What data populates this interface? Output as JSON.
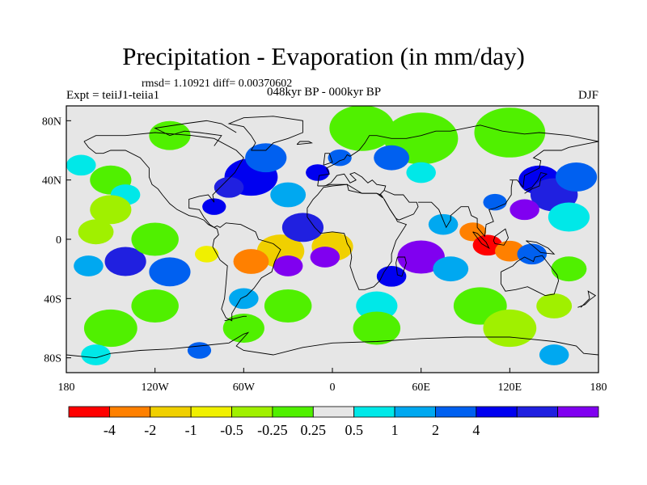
{
  "header": {
    "title": "Precipitation - Evaporation (in mm/day)",
    "stats": "rmsd= 1.10921 diff= 0.00370602",
    "experiment": "Expt = teiiJ1-teiia1",
    "period": "048kyr BP - 000kyr BP",
    "season": "DJF"
  },
  "map": {
    "lon_range": [
      -180,
      180
    ],
    "lat_range": [
      -90,
      90
    ],
    "background_color": "#e6e6e6",
    "x_ticks": [
      {
        "value": -180,
        "label": "180"
      },
      {
        "value": -120,
        "label": "120W"
      },
      {
        "value": -60,
        "label": "60W"
      },
      {
        "value": 0,
        "label": "0"
      },
      {
        "value": 60,
        "label": "60E"
      },
      {
        "value": 120,
        "label": "120E"
      },
      {
        "value": 180,
        "label": "180"
      }
    ],
    "y_ticks": [
      {
        "value": 80,
        "label": "80N"
      },
      {
        "value": 40,
        "label": "40N"
      },
      {
        "value": 0,
        "label": "0"
      },
      {
        "value": -40,
        "label": "40S"
      },
      {
        "value": -80,
        "label": "80S"
      }
    ]
  },
  "colorbar": {
    "colors": [
      "#ff0000",
      "#ff8000",
      "#f0d000",
      "#f0f000",
      "#a0f000",
      "#50f000",
      "#e6e6e6",
      "#00e8e8",
      "#00a8f0",
      "#0060f0",
      "#0000f0",
      "#2020e0",
      "#8000f0"
    ],
    "labels": [
      "-4",
      "-2",
      "-1",
      "-0.5",
      "-0.25",
      "0.25",
      "0.5",
      "1",
      "2",
      "4"
    ]
  },
  "fields": [
    {
      "lon": -170,
      "lat": 70,
      "r": 12,
      "v": 6
    },
    {
      "lon": -110,
      "lat": 70,
      "r": 14,
      "v": 5
    },
    {
      "lon": -60,
      "lat": 72,
      "r": 10,
      "v": 6
    },
    {
      "lon": 20,
      "lat": 75,
      "r": 22,
      "v": 5
    },
    {
      "lon": 60,
      "lat": 68,
      "r": 25,
      "v": 5
    },
    {
      "lon": 120,
      "lat": 72,
      "r": 24,
      "v": 5
    },
    {
      "lon": -150,
      "lat": 40,
      "r": 14,
      "v": 5
    },
    {
      "lon": -170,
      "lat": 50,
      "r": 10,
      "v": 7
    },
    {
      "lon": -140,
      "lat": 30,
      "r": 10,
      "v": 7
    },
    {
      "lon": -150,
      "lat": 20,
      "r": 14,
      "v": 4
    },
    {
      "lon": -55,
      "lat": 42,
      "r": 18,
      "v": 10
    },
    {
      "lon": -70,
      "lat": 35,
      "r": 10,
      "v": 11
    },
    {
      "lon": -45,
      "lat": 55,
      "r": 14,
      "v": 9
    },
    {
      "lon": -30,
      "lat": 30,
      "r": 12,
      "v": 8
    },
    {
      "lon": -80,
      "lat": 22,
      "r": 8,
      "v": 10
    },
    {
      "lon": -10,
      "lat": 45,
      "r": 8,
      "v": 10
    },
    {
      "lon": 5,
      "lat": 55,
      "r": 8,
      "v": 9
    },
    {
      "lon": 40,
      "lat": 55,
      "r": 12,
      "v": 9
    },
    {
      "lon": 60,
      "lat": 45,
      "r": 10,
      "v": 7
    },
    {
      "lon": 140,
      "lat": 40,
      "r": 14,
      "v": 10
    },
    {
      "lon": 150,
      "lat": 30,
      "r": 16,
      "v": 11
    },
    {
      "lon": 165,
      "lat": 42,
      "r": 14,
      "v": 9
    },
    {
      "lon": 130,
      "lat": 20,
      "r": 10,
      "v": 12
    },
    {
      "lon": 160,
      "lat": 15,
      "r": 14,
      "v": 7
    },
    {
      "lon": 110,
      "lat": 25,
      "r": 8,
      "v": 9
    },
    {
      "lon": 75,
      "lat": 10,
      "r": 10,
      "v": 8
    },
    {
      "lon": 95,
      "lat": 5,
      "r": 9,
      "v": 1
    },
    {
      "lon": 105,
      "lat": -4,
      "r": 10,
      "v": 0
    },
    {
      "lon": 120,
      "lat": -8,
      "r": 10,
      "v": 1
    },
    {
      "lon": 135,
      "lat": -10,
      "r": 10,
      "v": 9
    },
    {
      "lon": 160,
      "lat": -20,
      "r": 12,
      "v": 5
    },
    {
      "lon": -35,
      "lat": -8,
      "r": 16,
      "v": 2
    },
    {
      "lon": -55,
      "lat": -15,
      "r": 12,
      "v": 1
    },
    {
      "lon": 0,
      "lat": -5,
      "r": 14,
      "v": 2
    },
    {
      "lon": -20,
      "lat": 8,
      "r": 14,
      "v": 11
    },
    {
      "lon": -5,
      "lat": -12,
      "r": 10,
      "v": 12
    },
    {
      "lon": -30,
      "lat": -18,
      "r": 10,
      "v": 12
    },
    {
      "lon": 60,
      "lat": -12,
      "r": 16,
      "v": 12
    },
    {
      "lon": 40,
      "lat": -25,
      "r": 10,
      "v": 10
    },
    {
      "lon": 80,
      "lat": -20,
      "r": 12,
      "v": 8
    },
    {
      "lon": -140,
      "lat": -15,
      "r": 14,
      "v": 11
    },
    {
      "lon": -110,
      "lat": -22,
      "r": 14,
      "v": 9
    },
    {
      "lon": -165,
      "lat": -18,
      "r": 10,
      "v": 8
    },
    {
      "lon": -120,
      "lat": 0,
      "r": 16,
      "v": 5
    },
    {
      "lon": -160,
      "lat": 5,
      "r": 12,
      "v": 4
    },
    {
      "lon": -85,
      "lat": -10,
      "r": 8,
      "v": 3
    },
    {
      "lon": -60,
      "lat": -40,
      "r": 10,
      "v": 8
    },
    {
      "lon": -120,
      "lat": -45,
      "r": 16,
      "v": 5
    },
    {
      "lon": -30,
      "lat": -45,
      "r": 16,
      "v": 5
    },
    {
      "lon": 30,
      "lat": -45,
      "r": 14,
      "v": 7
    },
    {
      "lon": 100,
      "lat": -45,
      "r": 18,
      "v": 5
    },
    {
      "lon": 150,
      "lat": -45,
      "r": 12,
      "v": 4
    },
    {
      "lon": -150,
      "lat": -60,
      "r": 18,
      "v": 5
    },
    {
      "lon": -60,
      "lat": -60,
      "r": 14,
      "v": 5
    },
    {
      "lon": 30,
      "lat": -60,
      "r": 16,
      "v": 5
    },
    {
      "lon": 120,
      "lat": -60,
      "r": 18,
      "v": 4
    },
    {
      "lon": -160,
      "lat": -78,
      "r": 10,
      "v": 7
    },
    {
      "lon": -90,
      "lat": -75,
      "r": 8,
      "v": 9
    },
    {
      "lon": 150,
      "lat": -78,
      "r": 10,
      "v": 8
    }
  ]
}
